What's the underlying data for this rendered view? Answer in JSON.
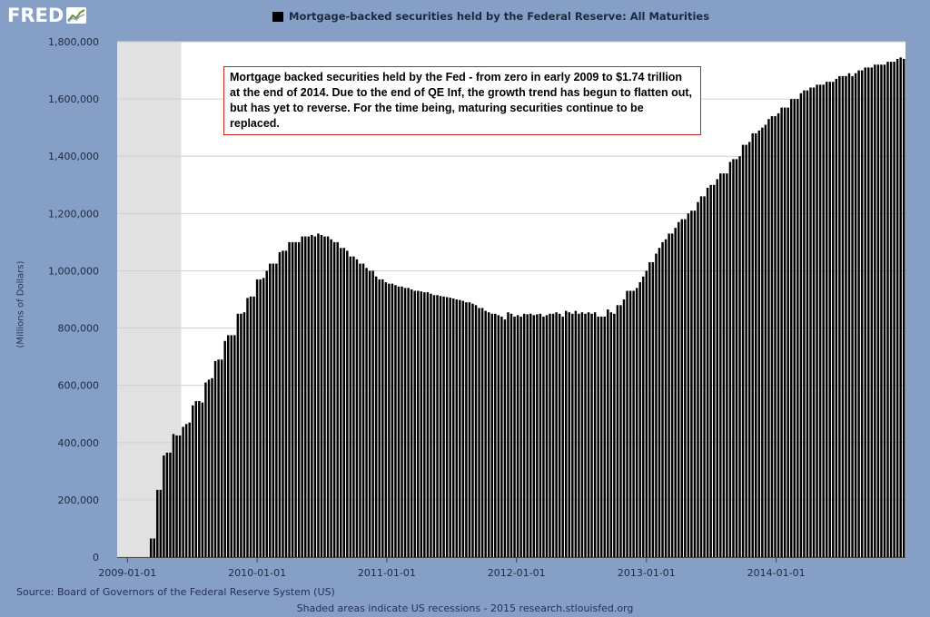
{
  "logo": {
    "text": "FRED"
  },
  "legend": {
    "label": "Mortgage-backed securities held by the Federal Reserve: All Maturities",
    "color": "#000000"
  },
  "annotation": {
    "text": "Mortgage backed securities held by the Fed - from zero in early 2009 to $1.74 trillion at the end of 2014. Due to the end of QE Inf, the growth trend has begun to flatten out, but has yet to reverse. For the time being, maturing securities continue to be replaced."
  },
  "source": "Source: Board of Governors of the Federal Reserve System (US)",
  "footer": "Shaded areas indicate US recessions - 2015 research.stlouisfed.org",
  "colors": {
    "background": "#869fc7",
    "plot_area": "#ffffff",
    "recession": "#e1e1e1",
    "bars": "#000000",
    "annotation_border": "#d02020"
  },
  "chart_data": {
    "type": "bar",
    "title": "Mortgage-backed securities held by the Federal Reserve: All Maturities",
    "ylabel": "(Millions of Dollars)",
    "xlabel": "",
    "ylim": [
      0,
      1800000
    ],
    "yticks": [
      "0",
      "200,000",
      "400,000",
      "600,000",
      "800,000",
      "1,000,000",
      "1,200,000",
      "1,400,000",
      "1,600,000",
      "1,800,000"
    ],
    "ytick_values": [
      0,
      200000,
      400000,
      600000,
      800000,
      1000000,
      1200000,
      1400000,
      1600000,
      1800000
    ],
    "xticks": [
      "2009-01-01",
      "2010-01-01",
      "2011-01-01",
      "2012-01-01",
      "2013-01-01",
      "2014-01-01"
    ],
    "x_start": "2008-12-03",
    "x_end": "2014-12-31",
    "recessions": [
      {
        "start": "2007-12-01",
        "end": "2009-06-01"
      }
    ],
    "grid": true,
    "legend_position": "top",
    "series": [
      {
        "name": "Mortgage-backed securities held by the Federal Reserve: All Maturities",
        "frequency": "weekly",
        "values": [
          0,
          0,
          0,
          0,
          0,
          0,
          0,
          0,
          0,
          0,
          65000,
          65000,
          235000,
          235000,
          355000,
          365000,
          365000,
          430000,
          425000,
          425000,
          455000,
          465000,
          470000,
          530000,
          545000,
          545000,
          540000,
          610000,
          620000,
          625000,
          685000,
          690000,
          690000,
          755000,
          775000,
          775000,
          775000,
          850000,
          850000,
          855000,
          905000,
          910000,
          910000,
          970000,
          970000,
          975000,
          1000000,
          1025000,
          1025000,
          1025000,
          1065000,
          1070000,
          1070000,
          1100000,
          1100000,
          1100000,
          1100000,
          1120000,
          1120000,
          1120000,
          1125000,
          1120000,
          1130000,
          1125000,
          1120000,
          1120000,
          1110000,
          1100000,
          1100000,
          1080000,
          1080000,
          1070000,
          1050000,
          1050000,
          1040000,
          1025000,
          1025000,
          1010000,
          1000000,
          1000000,
          980000,
          970000,
          970000,
          960000,
          955000,
          955000,
          950000,
          945000,
          945000,
          940000,
          940000,
          935000,
          930000,
          930000,
          928000,
          925000,
          925000,
          920000,
          915000,
          915000,
          912000,
          910000,
          908000,
          906000,
          903000,
          900000,
          898000,
          895000,
          890000,
          890000,
          885000,
          880000,
          870000,
          870000,
          860000,
          855000,
          850000,
          850000,
          845000,
          840000,
          830000,
          855000,
          850000,
          840000,
          845000,
          840000,
          850000,
          848000,
          850000,
          845000,
          848000,
          850000,
          840000,
          845000,
          850000,
          850000,
          855000,
          850000,
          840000,
          860000,
          855000,
          850000,
          860000,
          850000,
          855000,
          850000,
          855000,
          850000,
          855000,
          840000,
          840000,
          840000,
          865000,
          855000,
          850000,
          880000,
          880000,
          900000,
          930000,
          930000,
          930000,
          940000,
          960000,
          980000,
          1000000,
          1030000,
          1030000,
          1060000,
          1080000,
          1100000,
          1110000,
          1130000,
          1130000,
          1150000,
          1170000,
          1180000,
          1180000,
          1200000,
          1210000,
          1210000,
          1240000,
          1260000,
          1260000,
          1290000,
          1300000,
          1300000,
          1320000,
          1340000,
          1340000,
          1340000,
          1380000,
          1390000,
          1390000,
          1400000,
          1440000,
          1440000,
          1450000,
          1480000,
          1480000,
          1490000,
          1500000,
          1510000,
          1530000,
          1540000,
          1540000,
          1550000,
          1570000,
          1570000,
          1570000,
          1600000,
          1600000,
          1600000,
          1620000,
          1630000,
          1630000,
          1640000,
          1640000,
          1650000,
          1650000,
          1650000,
          1660000,
          1660000,
          1660000,
          1670000,
          1680000,
          1680000,
          1680000,
          1690000,
          1680000,
          1690000,
          1700000,
          1700000,
          1710000,
          1710000,
          1710000,
          1720000,
          1720000,
          1720000,
          1720000,
          1730000,
          1730000,
          1730000,
          1740000,
          1745000,
          1740000
        ]
      }
    ]
  }
}
